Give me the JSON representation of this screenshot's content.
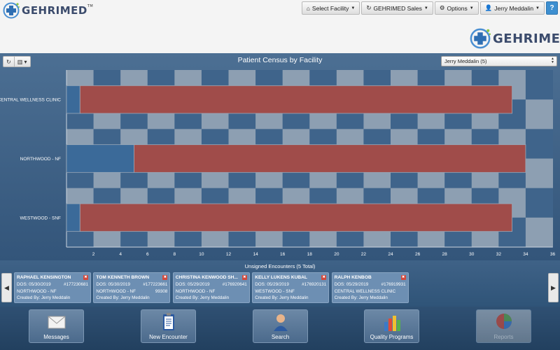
{
  "brand": {
    "name_prefix": "G",
    "name_rest": "EHRIMED",
    "tm": "TM"
  },
  "nav": {
    "select_facility": "Select Facility",
    "sales": "GEHRIMED Sales",
    "options": "Options",
    "user": "Jerry Meddalin",
    "help": "?"
  },
  "chart_panel": {
    "title": "Patient Census by Facility",
    "provider_select": "Jerry Meddalin (5)"
  },
  "chart_data": {
    "type": "bar",
    "orientation": "horizontal",
    "title": "Patient Census by Facility",
    "categories": [
      "CENTRAL WELLNESS CLINIC",
      "NORTHWOOD - NF",
      "WESTWOOD - SNF"
    ],
    "series": [
      {
        "values": [
          1,
          5,
          1
        ],
        "color": "#3b6a99"
      },
      {
        "values": [
          32,
          29,
          32
        ],
        "color": "#a04c4a"
      }
    ],
    "stacked": true,
    "xlim": [
      0,
      36
    ],
    "xticks": [
      2,
      4,
      6,
      8,
      10,
      12,
      14,
      16,
      18,
      20,
      22,
      24,
      26,
      28,
      30,
      32,
      34,
      36
    ],
    "grid": true
  },
  "encounters": {
    "title": "Unsigned Encounters (5 Total)",
    "items": [
      {
        "name": "RAPHAEL KENSINGTON",
        "dos": "DOS: 05/30/2019",
        "id": "#177230681",
        "facility": "NORTHWOOD - NF",
        "extra": "",
        "created": "Created By: Jerry Meddalin"
      },
      {
        "name": "TOM KENNETH BROWN",
        "dos": "DOS: 05/30/2019",
        "id": "#177223661",
        "facility": "NORTHWOOD - NF",
        "extra": "99308",
        "created": "Created By: Jerry Meddalin"
      },
      {
        "name": "CHRISTINA KENWOOD SH...",
        "dos": "DOS: 05/29/2019",
        "id": "#176920641",
        "facility": "NORTHWOOD - NF",
        "extra": "",
        "created": "Created By: Jerry Meddalin"
      },
      {
        "name": "KELLY LUKENS KUBAL",
        "dos": "DOS: 05/29/2019",
        "id": "#176920131",
        "facility": "WESTWOOD - SNF",
        "extra": "",
        "created": "Created By: Jerry Meddalin"
      },
      {
        "name": "RALPH KENBOB",
        "dos": "DOS: 05/29/2019",
        "id": "#176919931",
        "facility": "CENTRAL WELLNESS CLINIC",
        "extra": "",
        "created": "Created By: Jerry Meddalin"
      }
    ]
  },
  "dock": {
    "messages": "Messages",
    "new_encounter": "New Encounter",
    "search": "Search",
    "quality": "Quality Programs",
    "reports": "Reports"
  }
}
